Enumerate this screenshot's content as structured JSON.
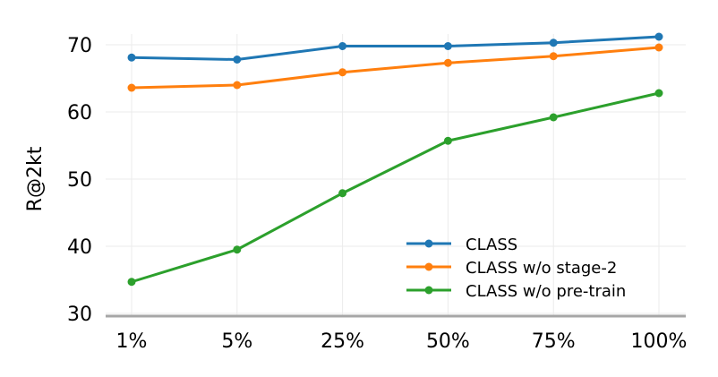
{
  "chart_data": {
    "type": "line",
    "categories": [
      "1%",
      "5%",
      "25%",
      "50%",
      "75%",
      "100%"
    ],
    "series": [
      {
        "name": "CLASS",
        "color": "#1f77b4",
        "values": [
          68.1,
          67.8,
          69.8,
          69.8,
          70.3,
          71.2
        ]
      },
      {
        "name": "CLASS w/o stage-2",
        "color": "#ff7f0e",
        "values": [
          63.6,
          64.0,
          65.9,
          67.3,
          68.3,
          69.6
        ]
      },
      {
        "name": "CLASS w/o pre-train",
        "color": "#2ca02c",
        "values": [
          34.7,
          39.5,
          47.9,
          55.7,
          59.2,
          62.8
        ]
      }
    ],
    "xlabel": "",
    "ylabel": "R@2kt",
    "ylim": [
      30,
      73
    ],
    "yticks": [
      30,
      40,
      50,
      60,
      70
    ],
    "grid": true,
    "legend_position": "lower-right"
  }
}
